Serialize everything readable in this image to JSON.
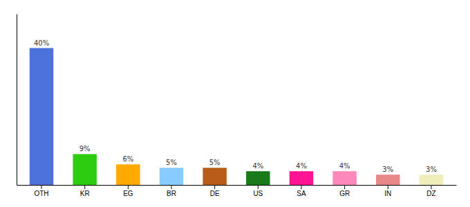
{
  "chart_data": {
    "type": "bar",
    "categories": [
      "OTH",
      "KR",
      "EG",
      "BR",
      "DE",
      "US",
      "SA",
      "GR",
      "IN",
      "DZ"
    ],
    "values": [
      40,
      9,
      6,
      5,
      5,
      4,
      4,
      4,
      3,
      3
    ],
    "value_labels": [
      "40%",
      "9%",
      "6%",
      "5%",
      "5%",
      "4%",
      "4%",
      "4%",
      "3%",
      "3%"
    ],
    "colors": [
      "#4d72d9",
      "#2ecc0e",
      "#ffaa00",
      "#88ccff",
      "#b85c1a",
      "#1a7a1a",
      "#ff1493",
      "#ff88bb",
      "#e88888",
      "#eeeebb"
    ],
    "ylim": [
      0,
      50
    ],
    "data_labels": true,
    "tick_labels": "x"
  }
}
